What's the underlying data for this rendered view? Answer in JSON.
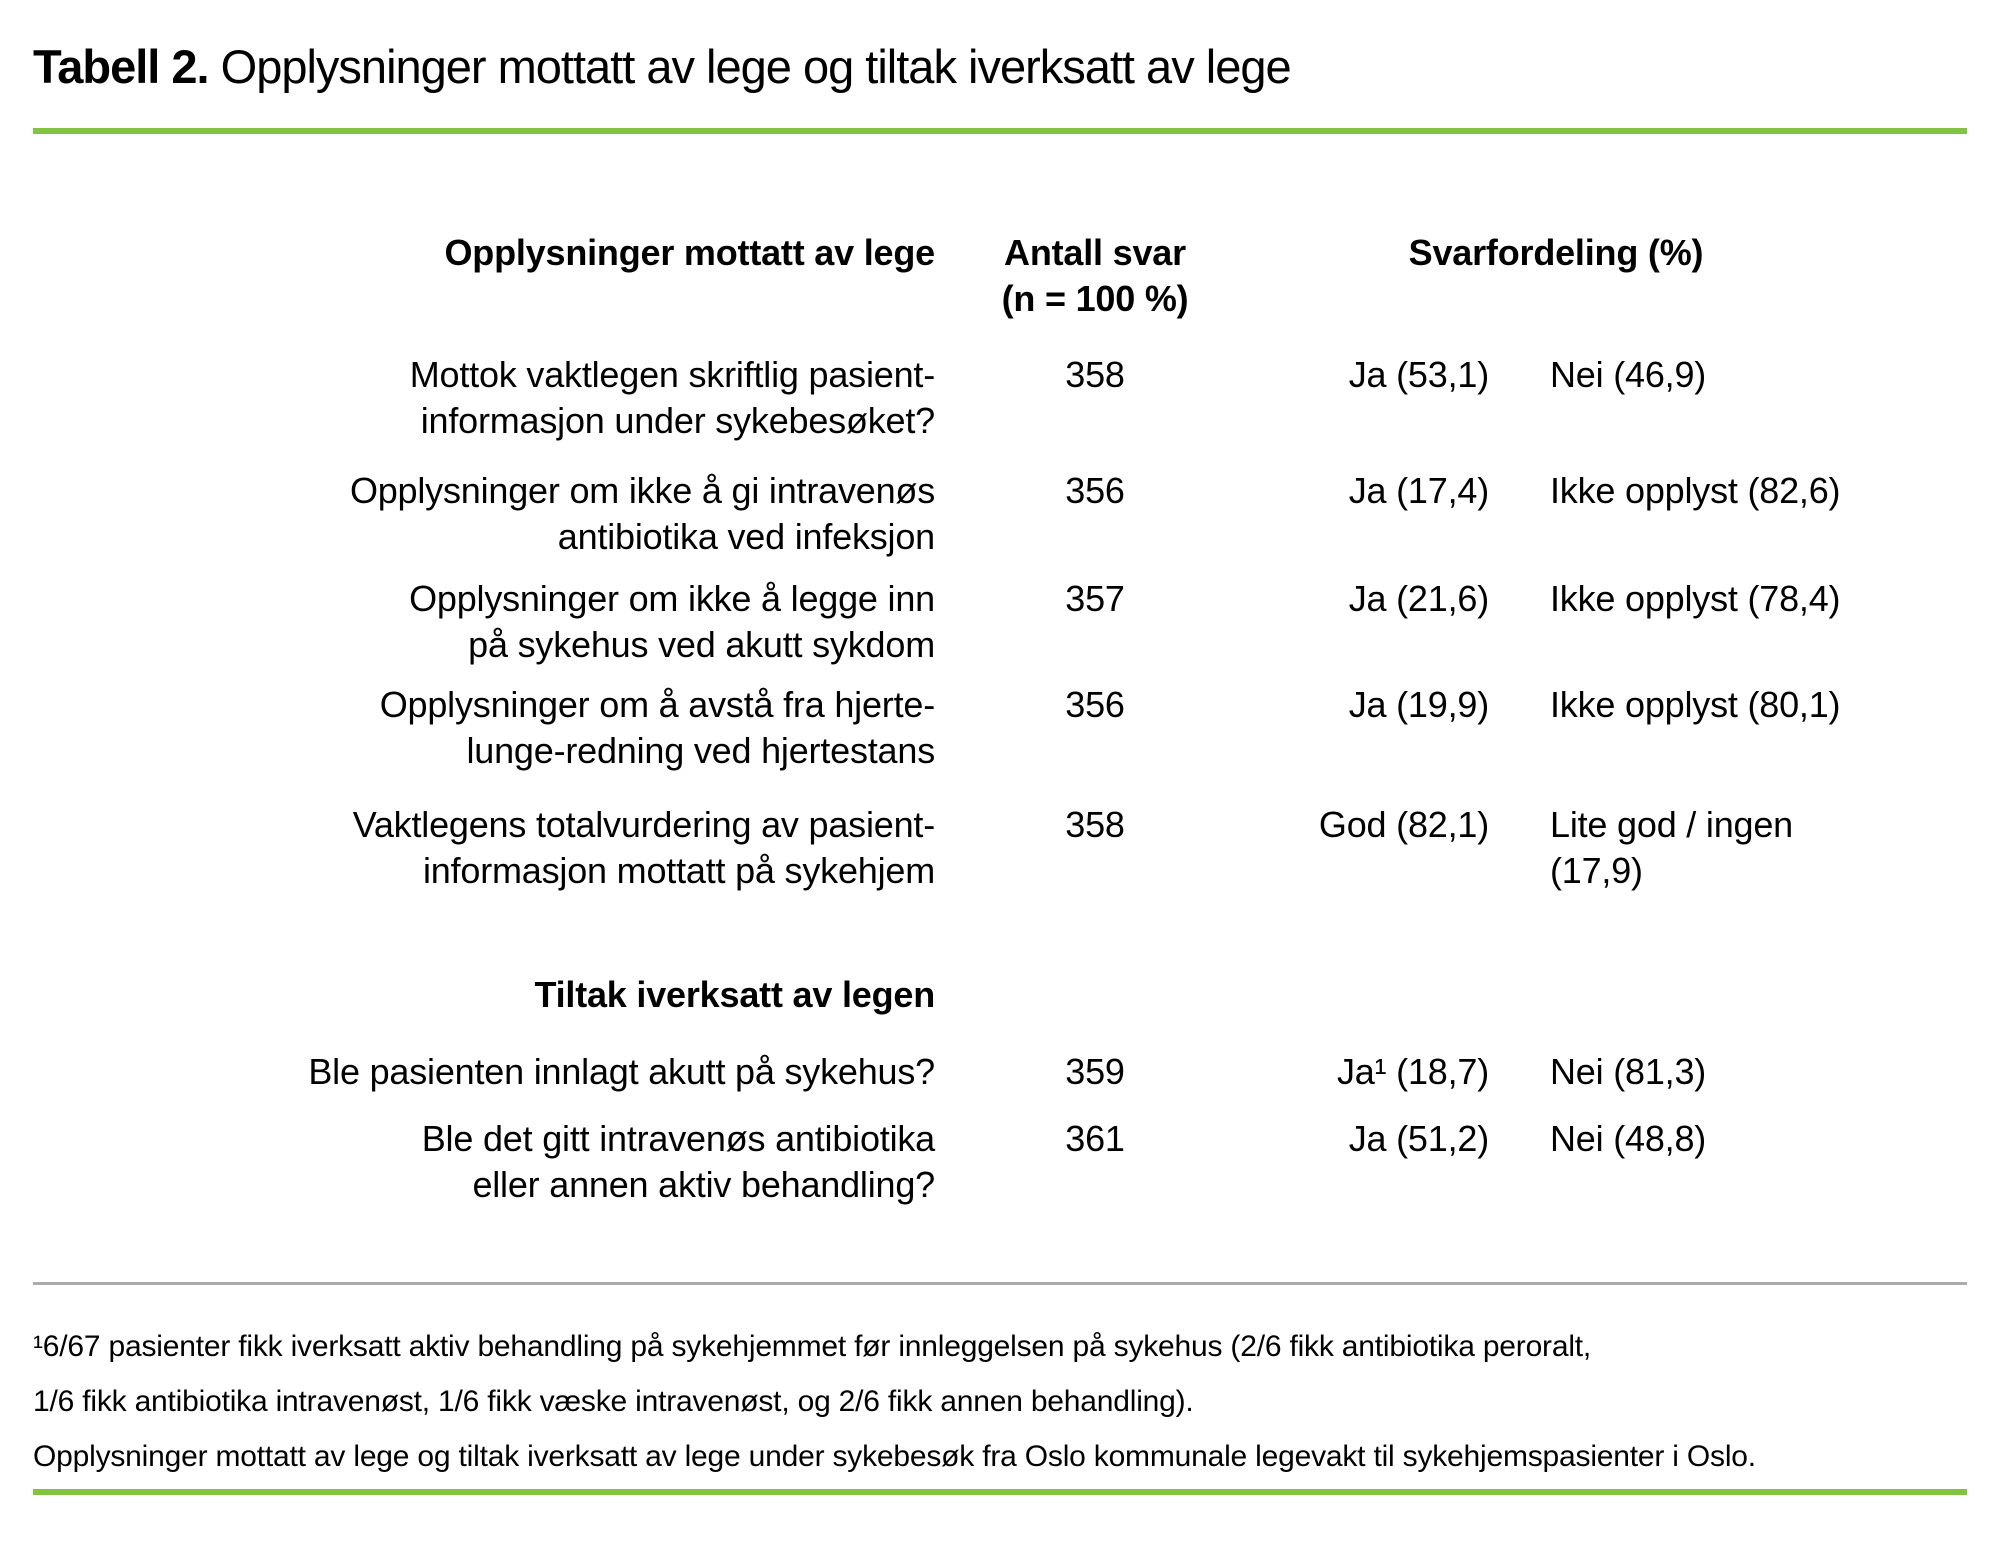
{
  "title": {
    "label": "Tabell 2.",
    "text": " Opplysninger mottatt av lege og tiltak iverksatt av lege"
  },
  "colors": {
    "accent_green": "#82C341",
    "rule_gray": "#ABABAB"
  },
  "table": {
    "header": {
      "questions": "Opplysninger mottatt av lege",
      "n": "Antall svar\n(n = 100 %)",
      "distribution": "Svarfordeling (%)"
    },
    "rows": [
      {
        "q": "Mottok vaktlegen skriftlig pasient-\ninformasjon under sykebesøket?",
        "n": "358",
        "a1": "Ja (53,1)",
        "a2": "Nei (46,9)"
      },
      {
        "q": "Opplysninger om ikke å gi intravenøs\nantibiotika ved infeksjon",
        "n": "356",
        "a1": "Ja (17,4)",
        "a2": "Ikke opplyst (82,6)"
      },
      {
        "q": "Opplysninger om ikke å legge inn\npå sykehus ved akutt sykdom",
        "n": "357",
        "a1": "Ja (21,6)",
        "a2": "Ikke opplyst (78,4)"
      },
      {
        "q": "Opplysninger om å avstå fra hjerte-\nlunge-redning ved hjertestans",
        "n": "356",
        "a1": "Ja (19,9)",
        "a2": "Ikke opplyst (80,1)"
      },
      {
        "q": "Vaktlegens totalvurdering av pasient-\ninformasjon mottatt på sykehjem",
        "n": "358",
        "a1": "God (82,1)",
        "a2": "Lite god / ingen\n(17,9)"
      }
    ],
    "section2_title": "Tiltak iverksatt av legen",
    "rows2": [
      {
        "q": "Ble pasienten innlagt akutt på sykehus?",
        "n": "359",
        "a1": "Ja¹ (18,7)",
        "a2": "Nei (81,3)"
      },
      {
        "q": "Ble det gitt intravenøs antibiotika\neller annen aktiv behandling?",
        "n": "361",
        "a1": "Ja (51,2)",
        "a2": "Nei (48,8)"
      }
    ]
  },
  "footnote": "¹6/67 pasienter fikk iverksatt aktiv behandling på sykehjemmet før innleggelsen på sykehus (2/6 fikk antibiotika peroralt,\n1/6 fikk antibiotika intravenøst, 1/6 fikk væske intravenøst, og 2/6 fikk annen behandling).",
  "caption": "Opplysninger mottatt av lege og tiltak iverksatt av lege under sykebesøk fra Oslo kommunale legevakt til sykehjemspasienter i Oslo."
}
